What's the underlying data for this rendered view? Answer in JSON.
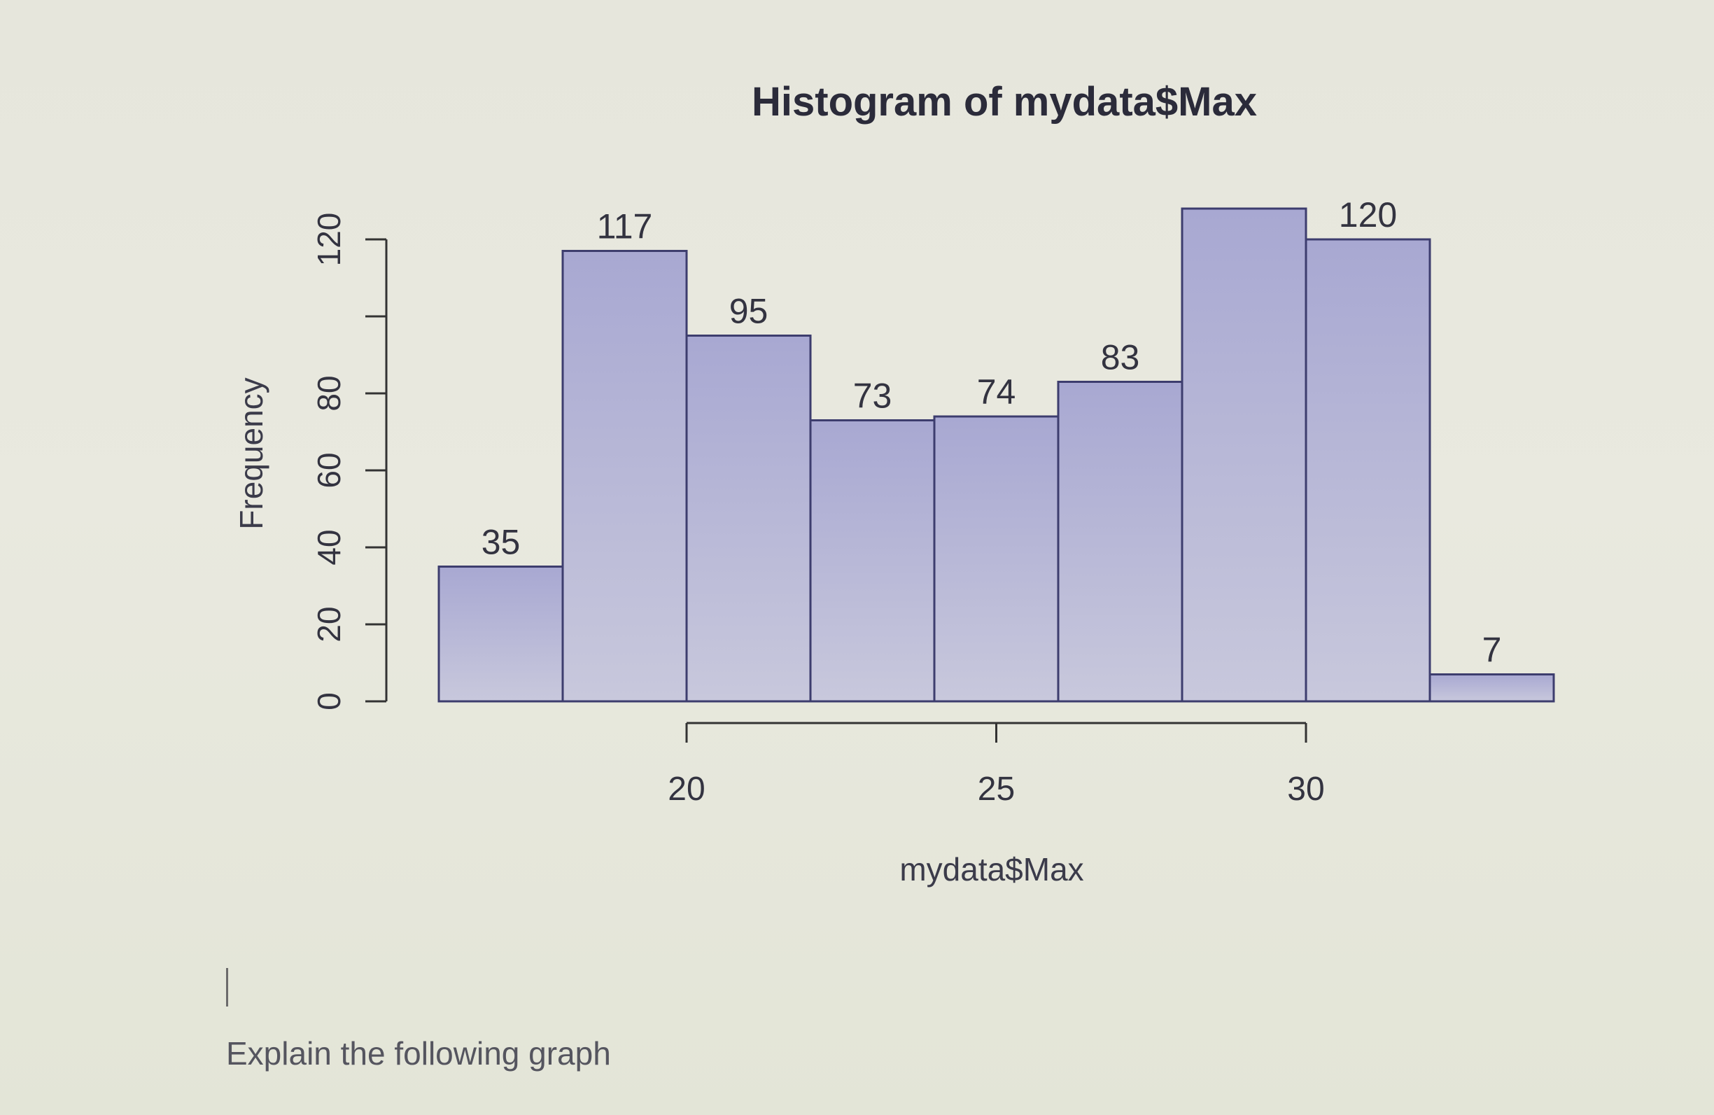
{
  "chart_data": {
    "type": "bar",
    "title": "Histogram of mydata$Max",
    "xlabel": "mydata$Max",
    "ylabel": "Frequency",
    "bins": [
      [
        16,
        18
      ],
      [
        18,
        20
      ],
      [
        20,
        22
      ],
      [
        22,
        24
      ],
      [
        24,
        26
      ],
      [
        26,
        28
      ],
      [
        28,
        30
      ],
      [
        30,
        32
      ],
      [
        32,
        34
      ]
    ],
    "values": [
      35,
      117,
      95,
      73,
      74,
      83,
      128,
      120,
      7
    ],
    "data_labels": [
      "35",
      "117",
      "95",
      "73",
      "74",
      "83",
      "",
      "120",
      "7"
    ],
    "xticks": [
      20,
      25,
      30
    ],
    "xtick_labels": [
      "20",
      "25",
      "30"
    ],
    "yticks": [
      0,
      20,
      40,
      60,
      80,
      100,
      120
    ],
    "ytick_labels": [
      "0",
      "20",
      "40",
      "60",
      "80",
      "",
      "120"
    ],
    "ylim": [
      0,
      120
    ],
    "bar_fill": "#b3b3d4",
    "bar_edge": "#3d3d6e",
    "grid": false
  },
  "prompt": {
    "text": "Explain the following graph"
  }
}
